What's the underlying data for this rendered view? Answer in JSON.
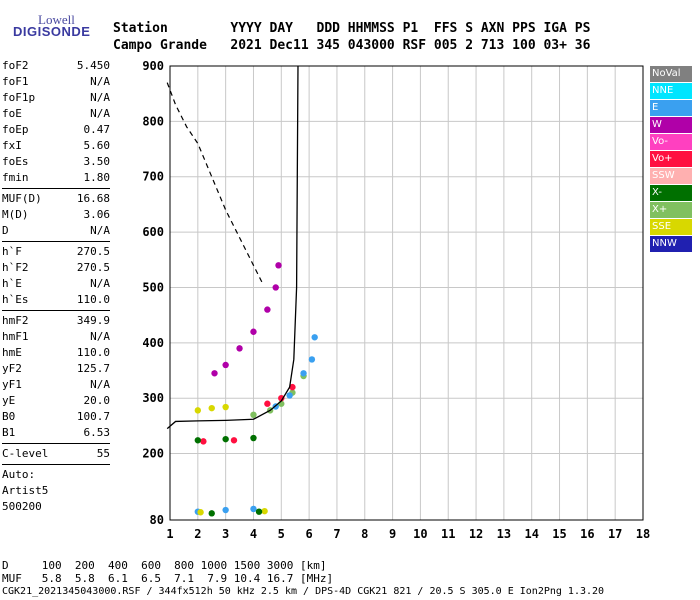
{
  "logo": {
    "lowell": "Lowell",
    "digisonde": "DIGISONDE"
  },
  "header": {
    "line1": "Station        YYYY DAY   DDD HHMMSS P1  FFS S AXN PPS IGA PS",
    "line2": "Campo Grande   2021 Dec11 345 043000 RSF 005 2 713 100 03+ 36"
  },
  "params": [
    [
      {
        "label": "foF2",
        "value": "5.450"
      },
      {
        "label": "foF1",
        "value": "N/A"
      },
      {
        "label": "foF1p",
        "value": "N/A"
      },
      {
        "label": "foE",
        "value": "N/A"
      },
      {
        "label": "foEp",
        "value": "0.47"
      },
      {
        "label": "fxI",
        "value": "5.60"
      },
      {
        "label": "foEs",
        "value": "3.50"
      },
      {
        "label": "fmin",
        "value": "1.80"
      }
    ],
    [
      {
        "label": "MUF(D)",
        "value": "16.68"
      },
      {
        "label": "M(D)",
        "value": "3.06"
      },
      {
        "label": "D",
        "value": "N/A"
      }
    ],
    [
      {
        "label": "h`F",
        "value": "270.5"
      },
      {
        "label": "h`F2",
        "value": "270.5"
      },
      {
        "label": "h`E",
        "value": "N/A"
      },
      {
        "label": "h`Es",
        "value": "110.0"
      }
    ],
    [
      {
        "label": "hmF2",
        "value": "349.9"
      },
      {
        "label": "hmF1",
        "value": "N/A"
      },
      {
        "label": "hmE",
        "value": "110.0"
      },
      {
        "label": "yF2",
        "value": "125.7"
      },
      {
        "label": "yF1",
        "value": "N/A"
      },
      {
        "label": "yE",
        "value": "20.0"
      },
      {
        "label": "B0",
        "value": "100.7"
      },
      {
        "label": "B1",
        "value": "6.53"
      }
    ],
    [
      {
        "label": "C-level",
        "value": "55"
      }
    ],
    [
      {
        "label": "Auto:",
        "value": ""
      },
      {
        "label": "Artist5",
        "value": ""
      },
      {
        "label": "500200",
        "value": ""
      }
    ]
  ],
  "legend": [
    {
      "label": "NoVal",
      "color": "#808080"
    },
    {
      "label": "NNE",
      "color": "#00e5ff"
    },
    {
      "label": "E",
      "color": "#3aa0f0"
    },
    {
      "label": "W",
      "color": "#b000a8"
    },
    {
      "label": "Vo-",
      "color": "#ff40c0"
    },
    {
      "label": "Vo+",
      "color": "#ff1040"
    },
    {
      "label": "SSW",
      "color": "#ffb0b0"
    },
    {
      "label": "X-",
      "color": "#007000"
    },
    {
      "label": "X+",
      "color": "#80c060"
    },
    {
      "label": "SSE",
      "color": "#d8d800"
    },
    {
      "label": "NNW",
      "color": "#2020b0"
    }
  ],
  "footer": {
    "d_line": "D     100  200  400  600  800 1000 1500 3000 [km]",
    "muf_line": "MUF   5.8  5.8  6.1  6.5  7.1  7.9 10.4 16.7 [MHz]",
    "info_line": "CGK21_2021345043000.RSF / 344fx512h 50 kHz 2.5 km / DPS-4D CGK21 821 / 20.5 S 305.0 E Ion2Png 1.3.20"
  },
  "chart_data": {
    "type": "scatter",
    "xlim": [
      1,
      18
    ],
    "ylim": [
      80,
      900
    ],
    "x_ticks": [
      1,
      2,
      3,
      4,
      5,
      6,
      7,
      8,
      9,
      10,
      11,
      12,
      13,
      14,
      15,
      16,
      17,
      18
    ],
    "y_ticks": [
      80,
      200,
      300,
      400,
      500,
      600,
      700,
      800,
      900
    ],
    "grid": true,
    "series": [
      {
        "name": "X+",
        "style": "points",
        "color": "#80c060",
        "points": [
          [
            4.0,
            270
          ],
          [
            4.6,
            278
          ],
          [
            5.0,
            290
          ],
          [
            5.4,
            310
          ],
          [
            5.8,
            340
          ]
        ]
      },
      {
        "name": "E",
        "style": "points",
        "color": "#3aa0f0",
        "points": [
          [
            2.0,
            95
          ],
          [
            3.0,
            98
          ],
          [
            4.0,
            100
          ],
          [
            4.8,
            285
          ],
          [
            5.3,
            305
          ],
          [
            5.8,
            345
          ],
          [
            6.1,
            370
          ],
          [
            6.2,
            410
          ]
        ]
      },
      {
        "name": "W",
        "style": "points",
        "color": "#b000a8",
        "points": [
          [
            2.6,
            345
          ],
          [
            3.0,
            360
          ],
          [
            3.5,
            390
          ],
          [
            4.0,
            420
          ],
          [
            4.5,
            460
          ],
          [
            4.8,
            500
          ],
          [
            4.9,
            540
          ]
        ]
      },
      {
        "name": "Vo+",
        "style": "points",
        "color": "#ff1040",
        "points": [
          [
            2.2,
            222
          ],
          [
            3.3,
            224
          ],
          [
            4.5,
            290
          ],
          [
            5.0,
            300
          ],
          [
            5.4,
            320
          ]
        ]
      },
      {
        "name": "SSE",
        "style": "points",
        "color": "#d8d800",
        "points": [
          [
            2.0,
            278
          ],
          [
            2.5,
            282
          ],
          [
            3.0,
            284
          ],
          [
            2.1,
            94
          ],
          [
            4.4,
            96
          ]
        ]
      },
      {
        "name": "X-",
        "style": "points",
        "color": "#007000",
        "points": [
          [
            2.0,
            224
          ],
          [
            3.0,
            226
          ],
          [
            4.0,
            228
          ],
          [
            2.5,
            92
          ],
          [
            4.2,
            95
          ]
        ]
      }
    ],
    "profile": [
      [
        0.9,
        245
      ],
      [
        1.2,
        258
      ],
      [
        2.0,
        259
      ],
      [
        3.0,
        260
      ],
      [
        4.0,
        262
      ],
      [
        4.6,
        278
      ],
      [
        5.0,
        295
      ],
      [
        5.3,
        320
      ],
      [
        5.45,
        370
      ],
      [
        5.55,
        500
      ],
      [
        5.6,
        900
      ]
    ],
    "dashed_curve": [
      [
        0.9,
        870
      ],
      [
        1.2,
        830
      ],
      [
        1.6,
        790
      ],
      [
        2.0,
        760
      ],
      [
        2.5,
        700
      ],
      [
        3.0,
        640
      ],
      [
        3.5,
        590
      ],
      [
        4.0,
        540
      ],
      [
        4.3,
        510
      ]
    ]
  }
}
